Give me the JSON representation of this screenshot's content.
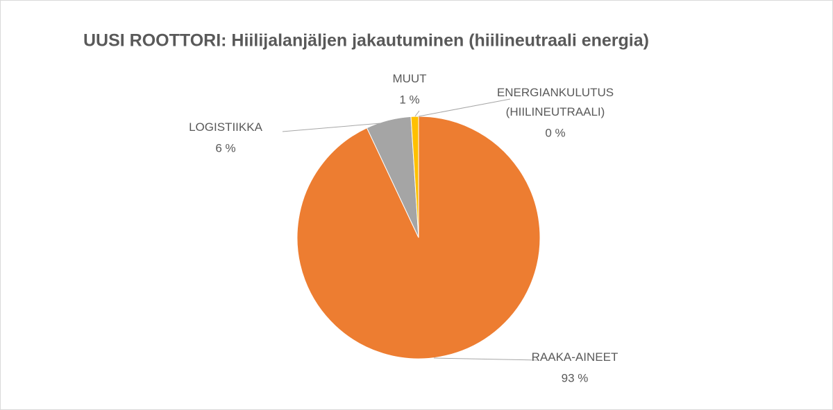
{
  "chart_data": {
    "type": "pie",
    "title": "UUSI ROOTTORI: Hiilijalanjäljen jakautuminen (hiilineutraali energia)",
    "categories": [
      "ENERGIANKULUTUS (HIILINEUTRAALI)",
      "RAAKA-AINEET",
      "LOGISTIIKKA",
      "MUUT"
    ],
    "values": [
      0,
      93,
      6,
      1
    ],
    "value_labels": [
      "0 %",
      "93 %",
      "6 %",
      "1 %"
    ],
    "colors": [
      "#4472c4",
      "#ed7d31",
      "#a5a5a5",
      "#ffc000"
    ]
  }
}
